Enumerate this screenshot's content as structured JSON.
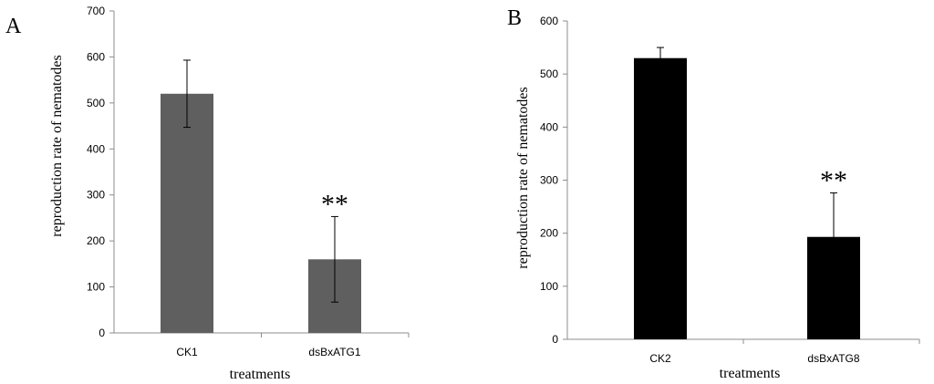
{
  "chart_data": [
    {
      "type": "bar",
      "panel": "A",
      "categories": [
        "CK1",
        "dsBxATG1"
      ],
      "values": [
        520,
        160
      ],
      "errors": [
        73,
        93
      ],
      "significance": [
        "",
        "**"
      ],
      "ylim": [
        0,
        700
      ],
      "yticks": [
        0,
        100,
        200,
        300,
        400,
        500,
        600,
        700
      ],
      "xlabel": "treatments",
      "ylabel": "reproduction rate of nematodes",
      "bar_color": "#5f5f5f",
      "grid": false
    },
    {
      "type": "bar",
      "panel": "B",
      "categories": [
        "CK2",
        "dsBxATG8"
      ],
      "values": [
        530,
        193
      ],
      "errors": [
        20,
        83
      ],
      "significance": [
        "",
        "**"
      ],
      "ylim": [
        0,
        600
      ],
      "yticks": [
        0,
        100,
        200,
        300,
        400,
        500,
        600
      ],
      "xlabel": "treatments",
      "ylabel": "reproduction rate of nematodes",
      "bar_color": "#000000",
      "grid": false
    }
  ]
}
